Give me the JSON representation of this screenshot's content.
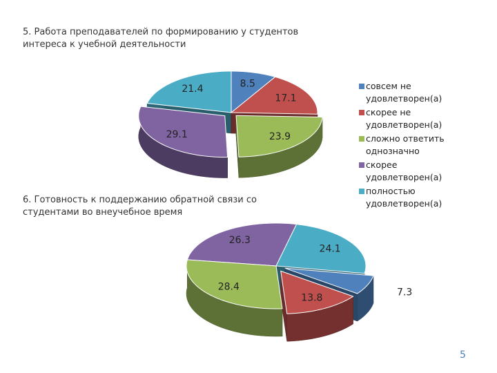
{
  "page_number": "5",
  "chart_data": [
    {
      "type": "pie",
      "title": "5. Работа преподавателей по формированию у студентов интереса к учебной деятельности",
      "categories": [
        "совсем не удовлетворен(а)",
        "скорее не удовлетворен(а)",
        "сложно ответить однозначно",
        "скорее удовлетворен(а)",
        "полностью удовлетворен(а)"
      ],
      "values": [
        8.5,
        17.1,
        23.9,
        29.1,
        21.4
      ],
      "colors": [
        "#4f81bd",
        "#c0504d",
        "#9bbb59",
        "#8064a2",
        "#4bacc6"
      ],
      "legend": "right"
    },
    {
      "type": "pie",
      "title": "6. Готовность к поддержанию обратной связи со студентами во внеучебное время",
      "values": [
        7.3,
        13.8,
        28.4,
        26.3,
        24.1
      ],
      "colors": [
        "#4f81bd",
        "#c0504d",
        "#9bbb59",
        "#8064a2",
        "#4bacc6"
      ]
    }
  ]
}
